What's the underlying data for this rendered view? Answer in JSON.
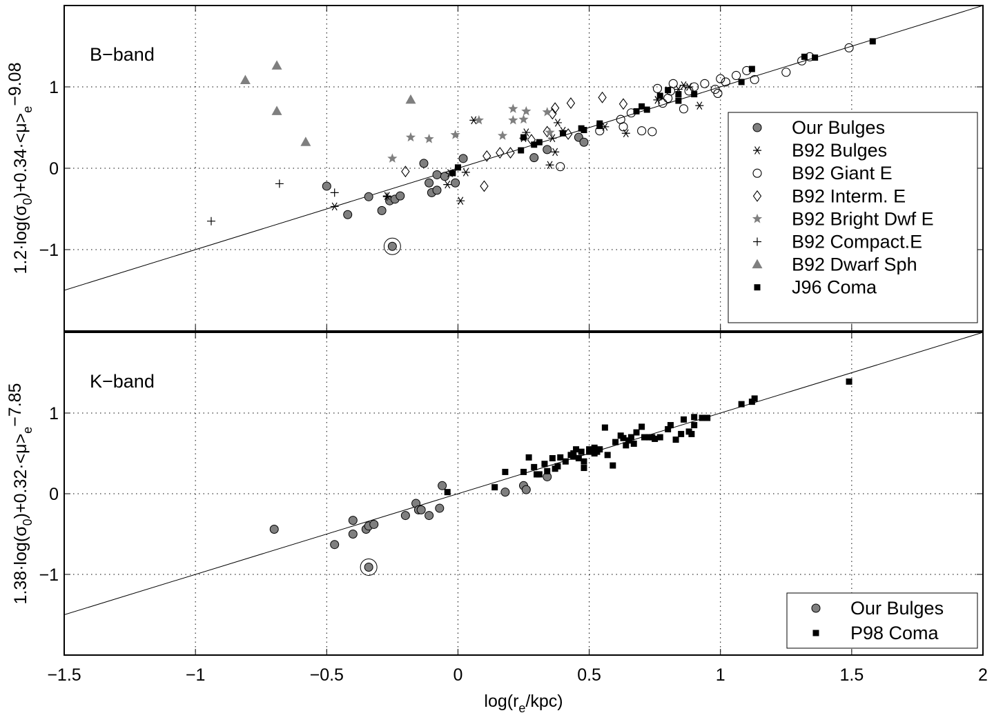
{
  "colors": {
    "gray": "#7f7f7f",
    "black": "#000000",
    "grid": "#000000"
  },
  "chart_data": [
    {
      "type": "scatter",
      "panel_label": "B−band",
      "ylabel": {
        "main": "1.2·log(σ",
        "sub1": "0",
        "mid": ")+0.34·<μ>",
        "sub2": "e",
        "tail": "−9.08"
      },
      "xlim": [
        -1.5,
        2
      ],
      "ylim": [
        -2,
        2
      ],
      "xticks": [
        -1.5,
        -1,
        -0.5,
        0,
        0.5,
        1,
        1.5,
        2
      ],
      "yticks": [
        -1,
        0,
        1
      ],
      "ytick_labels": [
        "−1",
        "0",
        "1"
      ],
      "grid": true,
      "legend_placement": "right",
      "fit_line": {
        "x": [
          -1.5,
          2
        ],
        "y": [
          -1.5,
          2.0
        ]
      },
      "highlighted_point": [
        -0.25,
        -0.96
      ],
      "series": [
        {
          "name": "Our Bulges",
          "marker": "circle-filled",
          "color": "#7f7f7f",
          "points": [
            [
              -0.5,
              -0.22
            ],
            [
              -0.42,
              -0.57
            ],
            [
              -0.34,
              -0.35
            ],
            [
              -0.29,
              -0.52
            ],
            [
              -0.26,
              -0.4
            ],
            [
              -0.24,
              -0.38
            ],
            [
              -0.22,
              -0.34
            ],
            [
              -0.13,
              0.06
            ],
            [
              -0.11,
              -0.18
            ],
            [
              -0.1,
              -0.3
            ],
            [
              -0.08,
              -0.27
            ],
            [
              -0.08,
              -0.08
            ],
            [
              -0.05,
              -0.1
            ],
            [
              -0.01,
              -0.18
            ],
            [
              0.02,
              0.12
            ],
            [
              0.29,
              0.13
            ],
            [
              0.34,
              0.23
            ],
            [
              0.46,
              0.38
            ],
            [
              0.48,
              0.32
            ],
            [
              -0.25,
              -0.96
            ]
          ]
        },
        {
          "name": "B92 Bulges",
          "marker": "asterisk",
          "color": "#000000",
          "points": [
            [
              -0.47,
              -0.47
            ],
            [
              -0.27,
              -0.34
            ],
            [
              -0.04,
              -0.2
            ],
            [
              -0.03,
              -0.06
            ],
            [
              0.01,
              -0.4
            ],
            [
              0.03,
              -0.05
            ],
            [
              0.06,
              0.59
            ],
            [
              0.25,
              0.37
            ],
            [
              0.26,
              0.44
            ],
            [
              0.35,
              0.04
            ],
            [
              0.36,
              0.37
            ],
            [
              0.37,
              0.2
            ],
            [
              0.38,
              0.56
            ],
            [
              0.4,
              0.46
            ],
            [
              0.56,
              0.51
            ],
            [
              0.64,
              0.43
            ],
            [
              0.76,
              0.84
            ],
            [
              0.84,
              0.97
            ],
            [
              0.86,
              1.02
            ],
            [
              0.88,
              1.0
            ],
            [
              0.92,
              0.77
            ]
          ]
        },
        {
          "name": "B92 Giant E",
          "marker": "circle-open",
          "color": "#000000",
          "points": [
            [
              0.39,
              0.02
            ],
            [
              0.54,
              0.46
            ],
            [
              0.62,
              0.6
            ],
            [
              0.63,
              0.51
            ],
            [
              0.66,
              0.68
            ],
            [
              0.7,
              0.46
            ],
            [
              0.74,
              0.45
            ],
            [
              0.76,
              0.98
            ],
            [
              0.78,
              0.8
            ],
            [
              0.8,
              0.86
            ],
            [
              0.81,
              0.95
            ],
            [
              0.82,
              1.04
            ],
            [
              0.86,
              0.73
            ],
            [
              0.88,
              0.95
            ],
            [
              0.9,
              1.0
            ],
            [
              0.94,
              1.04
            ],
            [
              0.98,
              0.97
            ],
            [
              1.0,
              1.1
            ],
            [
              1.02,
              1.06
            ],
            [
              1.06,
              1.14
            ],
            [
              1.1,
              1.2
            ],
            [
              1.13,
              1.09
            ],
            [
              1.25,
              1.18
            ],
            [
              1.31,
              1.32
            ],
            [
              1.34,
              1.37
            ],
            [
              1.49,
              1.48
            ],
            [
              0.99,
              0.92
            ]
          ]
        },
        {
          "name": "B92 Interm. E",
          "marker": "diamond-open",
          "color": "#000000",
          "points": [
            [
              -0.2,
              -0.04
            ],
            [
              0.1,
              -0.22
            ],
            [
              0.11,
              0.15
            ],
            [
              0.16,
              0.19
            ],
            [
              0.2,
              0.19
            ],
            [
              0.28,
              0.35
            ],
            [
              0.34,
              0.45
            ],
            [
              0.36,
              0.67
            ],
            [
              0.37,
              0.74
            ],
            [
              0.42,
              0.42
            ],
            [
              0.43,
              0.8
            ],
            [
              0.55,
              0.87
            ],
            [
              0.63,
              0.79
            ]
          ]
        },
        {
          "name": "B92 Bright Dwf E",
          "marker": "star",
          "color": "#7f7f7f",
          "points": [
            [
              -0.25,
              0.12
            ],
            [
              -0.18,
              0.38
            ],
            [
              -0.11,
              0.36
            ],
            [
              -0.01,
              0.41
            ],
            [
              0.08,
              0.59
            ],
            [
              0.17,
              0.4
            ],
            [
              0.21,
              0.59
            ],
            [
              0.21,
              0.73
            ],
            [
              0.25,
              0.6
            ],
            [
              0.26,
              0.7
            ],
            [
              0.34,
              0.69
            ],
            [
              0.35,
              0.44
            ]
          ]
        },
        {
          "name": "B92 Compact.E",
          "marker": "plus",
          "color": "#000000",
          "points": [
            [
              -0.94,
              -0.65
            ],
            [
              -0.68,
              -0.19
            ],
            [
              -0.47,
              -0.3
            ],
            [
              -0.27,
              -0.35
            ]
          ]
        },
        {
          "name": "B92 Dwarf Sph",
          "marker": "triangle-filled",
          "color": "#7f7f7f",
          "points": [
            [
              -0.81,
              1.08
            ],
            [
              -0.69,
              1.26
            ],
            [
              -0.69,
              0.7
            ],
            [
              -0.58,
              0.32
            ],
            [
              -0.18,
              0.84
            ]
          ]
        },
        {
          "name": "J96 Coma",
          "marker": "square-filled",
          "color": "#000000",
          "points": [
            [
              -0.02,
              -0.06
            ],
            [
              0.0,
              0.01
            ],
            [
              0.24,
              0.22
            ],
            [
              0.25,
              0.38
            ],
            [
              0.29,
              0.29
            ],
            [
              0.31,
              0.32
            ],
            [
              0.4,
              0.43
            ],
            [
              0.47,
              0.49
            ],
            [
              0.48,
              0.47
            ],
            [
              0.54,
              0.55
            ],
            [
              0.54,
              0.52
            ],
            [
              0.68,
              0.7
            ],
            [
              0.7,
              0.76
            ],
            [
              0.72,
              0.72
            ],
            [
              0.77,
              0.89
            ],
            [
              0.8,
              0.96
            ],
            [
              0.84,
              0.83
            ],
            [
              0.84,
              0.91
            ],
            [
              0.9,
              0.91
            ],
            [
              1.08,
              1.06
            ],
            [
              1.12,
              1.22
            ],
            [
              1.32,
              1.37
            ],
            [
              1.36,
              1.36
            ],
            [
              1.58,
              1.56
            ]
          ]
        }
      ]
    },
    {
      "type": "scatter",
      "panel_label": "K−band",
      "xlabel": {
        "main": "log(r",
        "sub": "e",
        "tail": "/kpc)"
      },
      "ylabel": {
        "main": "1.38·log(σ",
        "sub1": "0",
        "mid": ")+0.32·<μ>",
        "sub2": "e",
        "tail": "−7.85"
      },
      "xlim": [
        -1.5,
        2
      ],
      "ylim": [
        -2,
        2
      ],
      "xticks": [
        -1.5,
        -1,
        -0.5,
        0,
        0.5,
        1,
        1.5,
        2
      ],
      "xtick_labels": [
        "−1.5",
        "−1",
        "−0.5",
        "0",
        "0.5",
        "1",
        "1.5",
        "2"
      ],
      "yticks": [
        -1,
        0,
        1
      ],
      "ytick_labels": [
        "−1",
        "0",
        "1"
      ],
      "grid": true,
      "legend_placement": "bottom-right",
      "fit_line": {
        "x": [
          -1.5,
          2
        ],
        "y": [
          -1.5,
          2.0
        ]
      },
      "highlighted_point": [
        -0.34,
        -0.91
      ],
      "series": [
        {
          "name": "Our Bulges",
          "marker": "circle-filled",
          "color": "#7f7f7f",
          "points": [
            [
              -0.7,
              -0.44
            ],
            [
              -0.47,
              -0.63
            ],
            [
              -0.4,
              -0.33
            ],
            [
              -0.4,
              -0.5
            ],
            [
              -0.35,
              -0.44
            ],
            [
              -0.34,
              -0.4
            ],
            [
              -0.32,
              -0.38
            ],
            [
              -0.2,
              -0.27
            ],
            [
              -0.16,
              -0.12
            ],
            [
              -0.15,
              -0.2
            ],
            [
              -0.14,
              -0.2
            ],
            [
              -0.11,
              -0.27
            ],
            [
              -0.07,
              -0.18
            ],
            [
              -0.06,
              0.1
            ],
            [
              0.18,
              0.02
            ],
            [
              0.25,
              0.1
            ],
            [
              0.26,
              0.05
            ],
            [
              0.34,
              0.21
            ],
            [
              -0.34,
              -0.91
            ]
          ]
        },
        {
          "name": "P98 Coma",
          "marker": "square-filled",
          "color": "#000000",
          "points": [
            [
              -0.04,
              0.02
            ],
            [
              0.14,
              0.08
            ],
            [
              0.18,
              0.27
            ],
            [
              0.25,
              0.27
            ],
            [
              0.27,
              0.45
            ],
            [
              0.29,
              0.33
            ],
            [
              0.3,
              0.24
            ],
            [
              0.31,
              0.24
            ],
            [
              0.33,
              0.37
            ],
            [
              0.34,
              0.28
            ],
            [
              0.36,
              0.44
            ],
            [
              0.37,
              0.31
            ],
            [
              0.38,
              0.34
            ],
            [
              0.39,
              0.45
            ],
            [
              0.41,
              0.4
            ],
            [
              0.43,
              0.48
            ],
            [
              0.44,
              0.5
            ],
            [
              0.45,
              0.55
            ],
            [
              0.46,
              0.44
            ],
            [
              0.47,
              0.52
            ],
            [
              0.48,
              0.32
            ],
            [
              0.48,
              0.4
            ],
            [
              0.5,
              0.52
            ],
            [
              0.52,
              0.57
            ],
            [
              0.53,
              0.52
            ],
            [
              0.54,
              0.55
            ],
            [
              0.56,
              0.82
            ],
            [
              0.57,
              0.48
            ],
            [
              0.59,
              0.35
            ],
            [
              0.6,
              0.64
            ],
            [
              0.62,
              0.72
            ],
            [
              0.63,
              0.69
            ],
            [
              0.64,
              0.6
            ],
            [
              0.65,
              0.66
            ],
            [
              0.66,
              0.7
            ],
            [
              0.67,
              0.62
            ],
            [
              0.68,
              0.76
            ],
            [
              0.7,
              0.83
            ],
            [
              0.71,
              0.7
            ],
            [
              0.73,
              0.7
            ],
            [
              0.74,
              0.7
            ],
            [
              0.75,
              0.68
            ],
            [
              0.77,
              0.7
            ],
            [
              0.8,
              0.8
            ],
            [
              0.81,
              0.85
            ],
            [
              0.83,
              0.67
            ],
            [
              0.85,
              0.74
            ],
            [
              0.86,
              0.92
            ],
            [
              0.88,
              0.77
            ],
            [
              0.89,
              0.74
            ],
            [
              0.9,
              0.85
            ],
            [
              0.9,
              0.95
            ],
            [
              0.93,
              0.94
            ],
            [
              0.95,
              0.94
            ],
            [
              1.08,
              1.11
            ],
            [
              1.12,
              1.14
            ],
            [
              1.13,
              1.18
            ],
            [
              1.49,
              1.39
            ],
            [
              0.5,
              0.55
            ],
            [
              0.44,
              0.46
            ],
            [
              0.52,
              0.5
            ]
          ]
        }
      ]
    }
  ]
}
